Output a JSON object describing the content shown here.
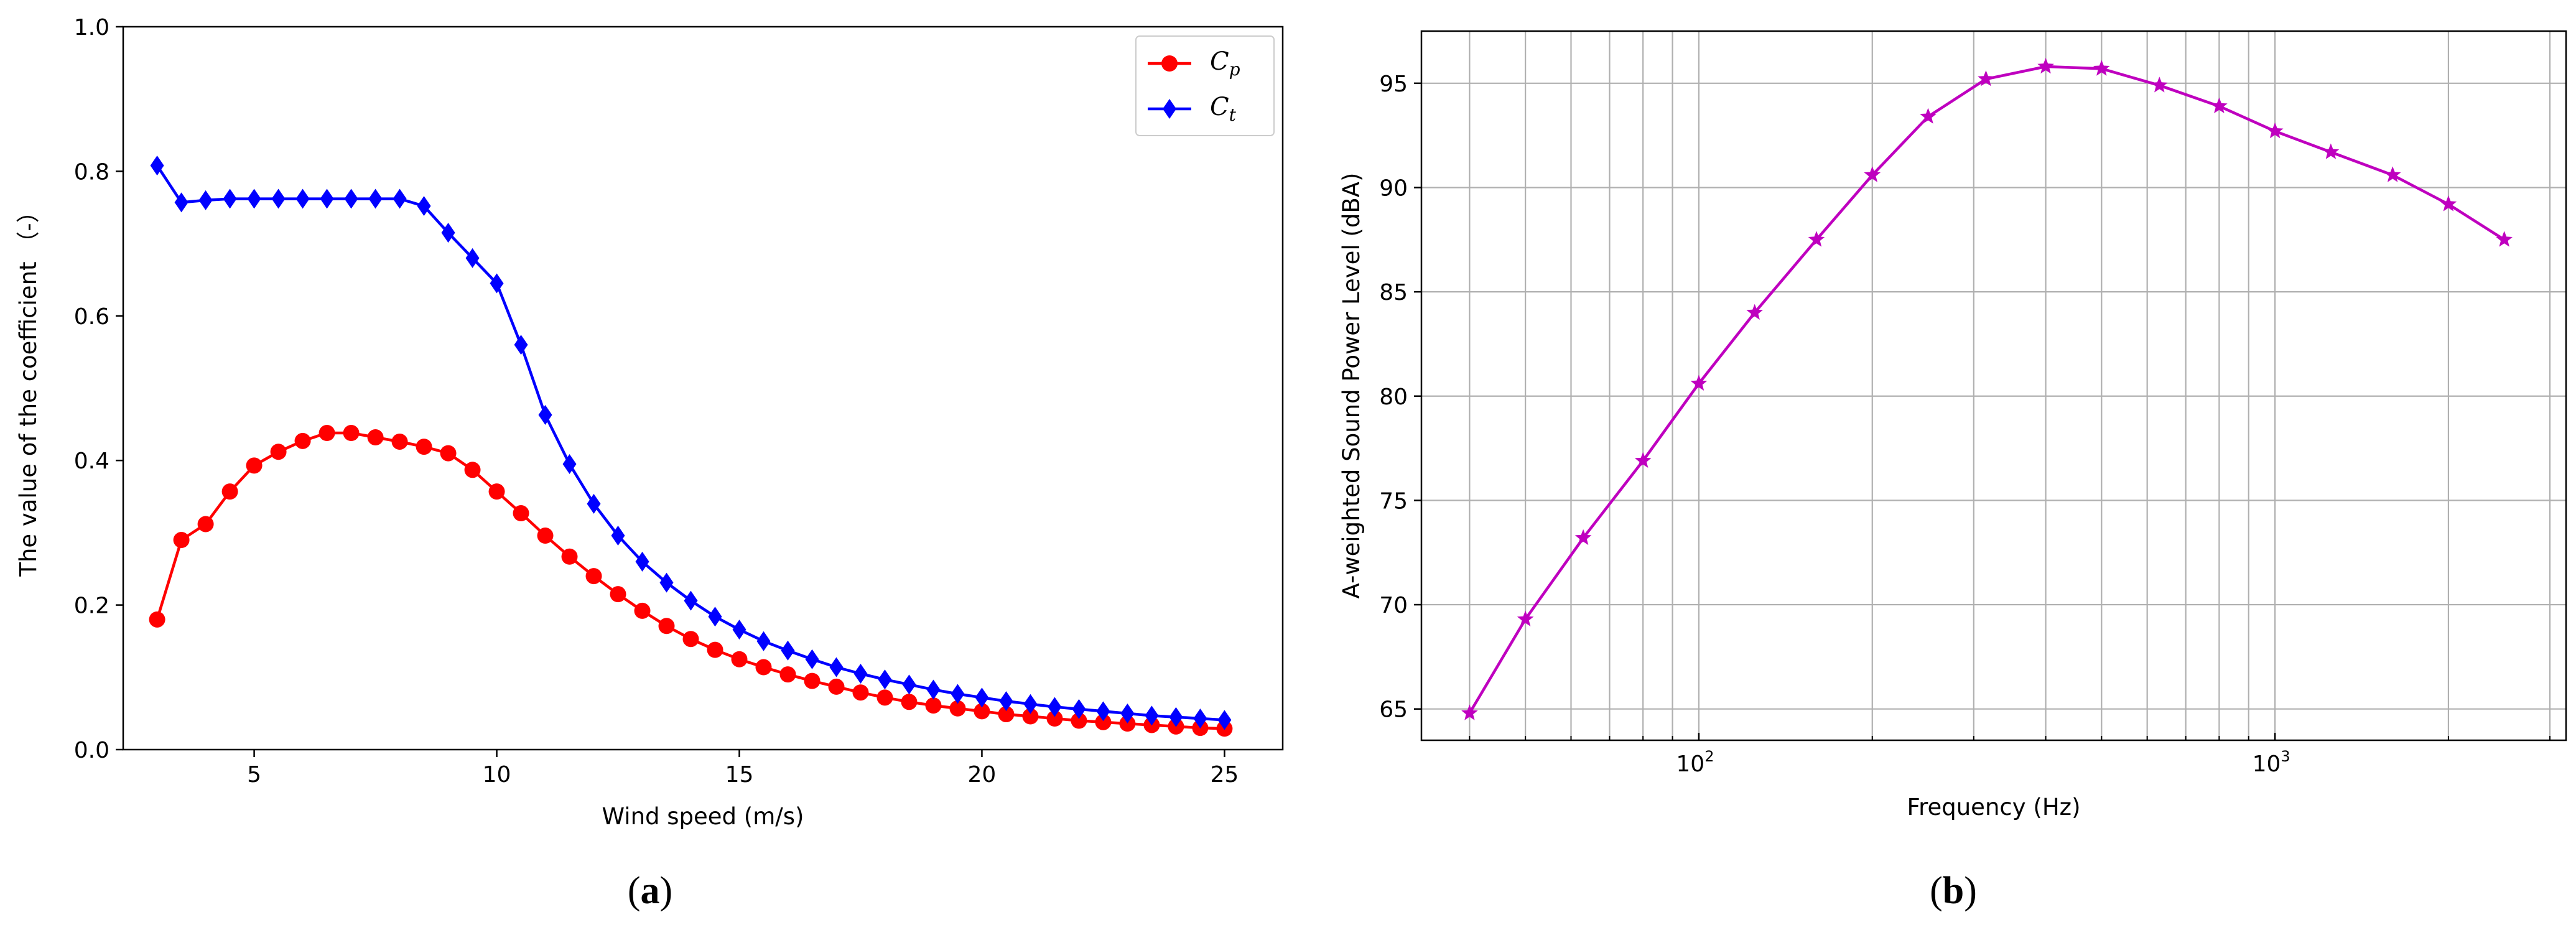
{
  "colors": {
    "cp": "#ff0000",
    "ct": "#0000ff",
    "spl": "#bf00bf",
    "axis": "#000000",
    "grid": "#b0b0b0"
  },
  "panels": [
    {
      "paren_open": "(",
      "letter": "a",
      "paren_close": ")"
    },
    {
      "paren_open": "(",
      "letter": "b",
      "paren_close": ")"
    }
  ],
  "chart_data": [
    {
      "type": "line",
      "xlabel": "Wind speed (m/s)",
      "ylabel": "The value of the coefficient （-）",
      "xlim": [
        2.3,
        26.2
      ],
      "ylim": [
        0.0,
        1.0
      ],
      "xticks": [
        5,
        10,
        15,
        20,
        25
      ],
      "xtick_labels": [
        "5",
        "10",
        "15",
        "20",
        "25"
      ],
      "yticks": [
        0.0,
        0.2,
        0.4,
        0.6,
        0.8,
        1.0
      ],
      "ytick_labels": [
        "0.0",
        "0.2",
        "0.4",
        "0.6",
        "0.8",
        "1.0"
      ],
      "grid": false,
      "legend_position": "top-right",
      "x": [
        3,
        3.5,
        4,
        4.5,
        5,
        5.5,
        6,
        6.5,
        7,
        7.5,
        8,
        8.5,
        9,
        9.5,
        10,
        10.5,
        11,
        11.5,
        12,
        12.5,
        13,
        13.5,
        14,
        14.5,
        15,
        15.5,
        16,
        16.5,
        17,
        17.5,
        18,
        18.5,
        19,
        19.5,
        20,
        20.5,
        21,
        21.5,
        22,
        22.5,
        23,
        23.5,
        24,
        24.5,
        25
      ],
      "series": [
        {
          "name": "C",
          "name_sub": "p",
          "marker": "circle",
          "values": [
            0.18,
            0.29,
            0.312,
            0.357,
            0.393,
            0.412,
            0.427,
            0.438,
            0.438,
            0.432,
            0.426,
            0.419,
            0.41,
            0.387,
            0.357,
            0.327,
            0.296,
            0.267,
            0.24,
            0.215,
            0.192,
            0.171,
            0.153,
            0.138,
            0.125,
            0.114,
            0.104,
            0.095,
            0.087,
            0.079,
            0.072,
            0.066,
            0.061,
            0.057,
            0.053,
            0.049,
            0.046,
            0.043,
            0.04,
            0.038,
            0.036,
            0.034,
            0.032,
            0.03,
            0.029
          ]
        },
        {
          "name": "C",
          "name_sub": "t",
          "marker": "diamond",
          "values": [
            0.808,
            0.757,
            0.76,
            0.762,
            0.762,
            0.762,
            0.762,
            0.762,
            0.762,
            0.762,
            0.762,
            0.752,
            0.715,
            0.68,
            0.645,
            0.56,
            0.463,
            0.395,
            0.34,
            0.296,
            0.26,
            0.231,
            0.206,
            0.184,
            0.166,
            0.15,
            0.137,
            0.125,
            0.114,
            0.105,
            0.097,
            0.09,
            0.083,
            0.077,
            0.072,
            0.067,
            0.063,
            0.059,
            0.056,
            0.053,
            0.05,
            0.047,
            0.045,
            0.043,
            0.041
          ]
        }
      ]
    },
    {
      "type": "line",
      "xscale": "log",
      "xlabel": "Frequency (Hz)",
      "ylabel": "A-weighted Sound Power Level (dBA)",
      "xlim": [
        33,
        3200
      ],
      "ylim": [
        63.5,
        97.5
      ],
      "xticks": [
        100,
        1000
      ],
      "xtick_base": "10",
      "xtick_exponents": [
        "2",
        "3"
      ],
      "minor_xticks": [
        40,
        50,
        60,
        70,
        80,
        90,
        200,
        300,
        400,
        500,
        600,
        700,
        800,
        900,
        2000,
        3000
      ],
      "yticks": [
        65,
        70,
        75,
        80,
        85,
        90,
        95
      ],
      "ytick_labels": [
        "65",
        "70",
        "75",
        "80",
        "85",
        "90",
        "95"
      ],
      "grid": true,
      "series": [
        {
          "marker": "star",
          "x": [
            40,
            50,
            63,
            80,
            100,
            125,
            160,
            200,
            250,
            315,
            400,
            500,
            630,
            800,
            1000,
            1250,
            1600,
            2000,
            2500
          ],
          "values": [
            64.8,
            69.3,
            73.2,
            76.9,
            80.6,
            84.0,
            87.5,
            90.6,
            93.4,
            95.2,
            95.8,
            95.7,
            94.9,
            93.9,
            92.7,
            91.7,
            90.6,
            89.2,
            87.5
          ]
        }
      ]
    }
  ]
}
